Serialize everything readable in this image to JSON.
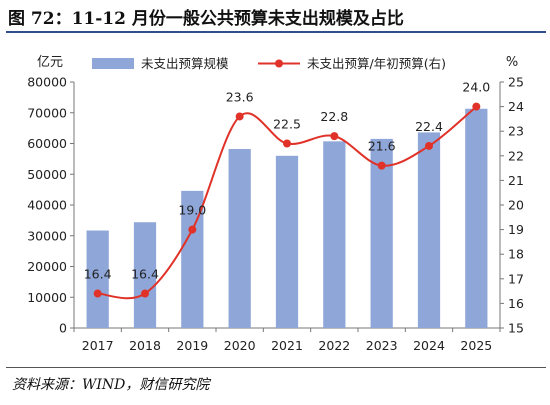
{
  "title": "图 72：11-12 月份一般公共预算未支出规模及占比",
  "source": "资料来源：WIND，财信研究院",
  "chart_data": {
    "type": "bar",
    "categories": [
      "2017",
      "2018",
      "2019",
      "2020",
      "2021",
      "2022",
      "2023",
      "2024",
      "2025"
    ],
    "y_left_unit": "亿元",
    "y_right_unit": "%",
    "ylim_left": [
      0,
      80000
    ],
    "yticks_left": [
      0,
      10000,
      20000,
      30000,
      40000,
      50000,
      60000,
      70000,
      80000
    ],
    "ylim_right": [
      15,
      25
    ],
    "yticks_right": [
      15,
      16,
      17,
      18,
      19,
      20,
      21,
      22,
      23,
      24,
      25
    ],
    "series": [
      {
        "name": "未支出预算规模",
        "type": "bar",
        "axis": "left",
        "color": "#8fa6d8",
        "values": [
          31700,
          34400,
          44600,
          58200,
          56000,
          60700,
          61500,
          63600,
          71300
        ]
      },
      {
        "name": "未支出预算/年初预算(右)",
        "type": "line",
        "axis": "right",
        "color": "#e03228",
        "values": [
          16.4,
          16.4,
          19.0,
          23.6,
          22.5,
          22.8,
          21.6,
          22.4,
          24.0
        ],
        "labels": [
          "16.4",
          "16.4",
          "19.0",
          "23.6",
          "22.5",
          "22.8",
          "21.6",
          "22.4",
          "24.0"
        ]
      }
    ],
    "legend_position": "top",
    "grid": false
  }
}
